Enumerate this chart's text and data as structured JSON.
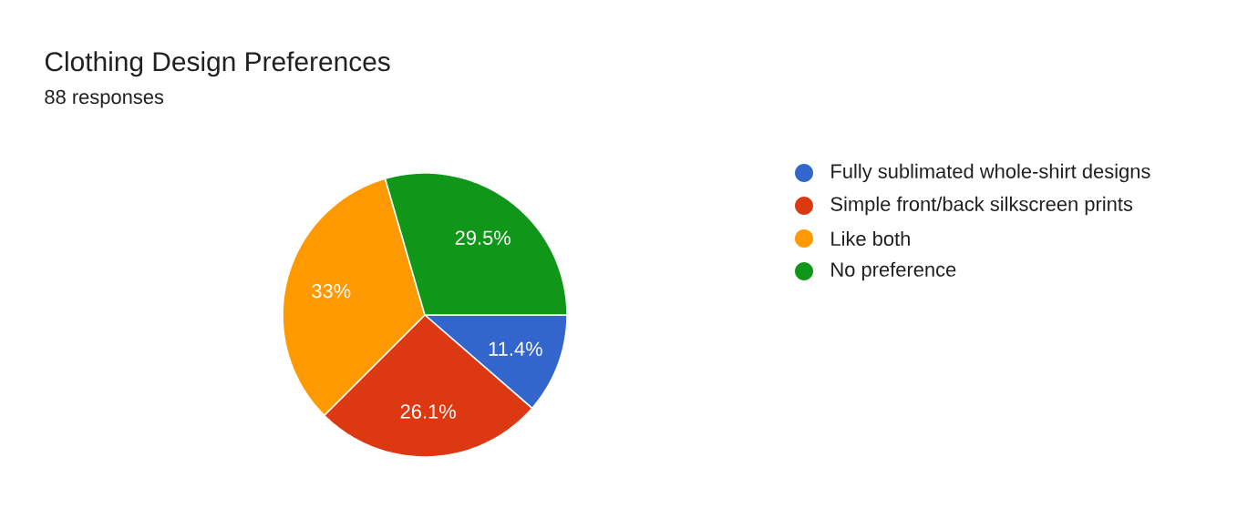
{
  "chart_data": {
    "type": "pie",
    "title": "Clothing Design Preferences",
    "subtitle": "88 responses",
    "categories": [
      "Fully sublimated whole-shirt designs",
      "Simple front/back silkscreen prints",
      "Like both",
      "No preference"
    ],
    "values": [
      11.4,
      26.1,
      33,
      29.5
    ],
    "value_labels": [
      "11.4%",
      "26.1%",
      "33%",
      "29.5%"
    ],
    "colors": [
      "#3366cc",
      "#dc3912",
      "#ff9900",
      "#109618"
    ],
    "legend": "right"
  }
}
